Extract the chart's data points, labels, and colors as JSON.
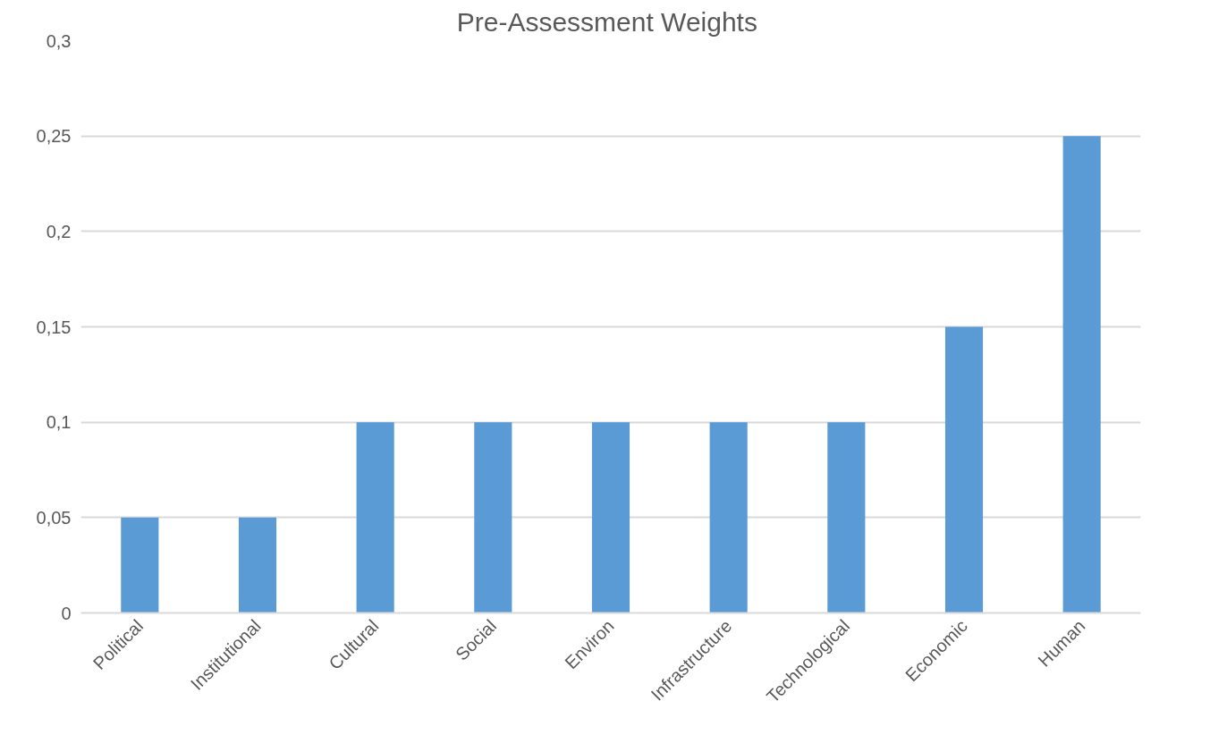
{
  "chart_data": {
    "type": "bar",
    "title": "Pre-Assessment  Weights",
    "categories": [
      "Political",
      "Institutional",
      "Cultural",
      "Social",
      "Environ",
      "Infrastructure",
      "Technological",
      "Economic",
      "Human"
    ],
    "values": [
      0.05,
      0.05,
      0.1,
      0.1,
      0.1,
      0.1,
      0.1,
      0.15,
      0.25
    ],
    "color": "#5b9bd5",
    "ylim": [
      0,
      0.3
    ],
    "yticks": [
      0,
      {
        "value": 0.05,
        "label": "0,05"
      },
      {
        "value": 0.1,
        "label": "0,1"
      },
      {
        "value": 0.15,
        "label": "0,15"
      },
      {
        "value": 0.2,
        "label": "0,2"
      },
      {
        "value": 0.25,
        "label": "0,25"
      },
      {
        "value": 0.3,
        "label": "0,3"
      }
    ],
    "grid": "y"
  }
}
